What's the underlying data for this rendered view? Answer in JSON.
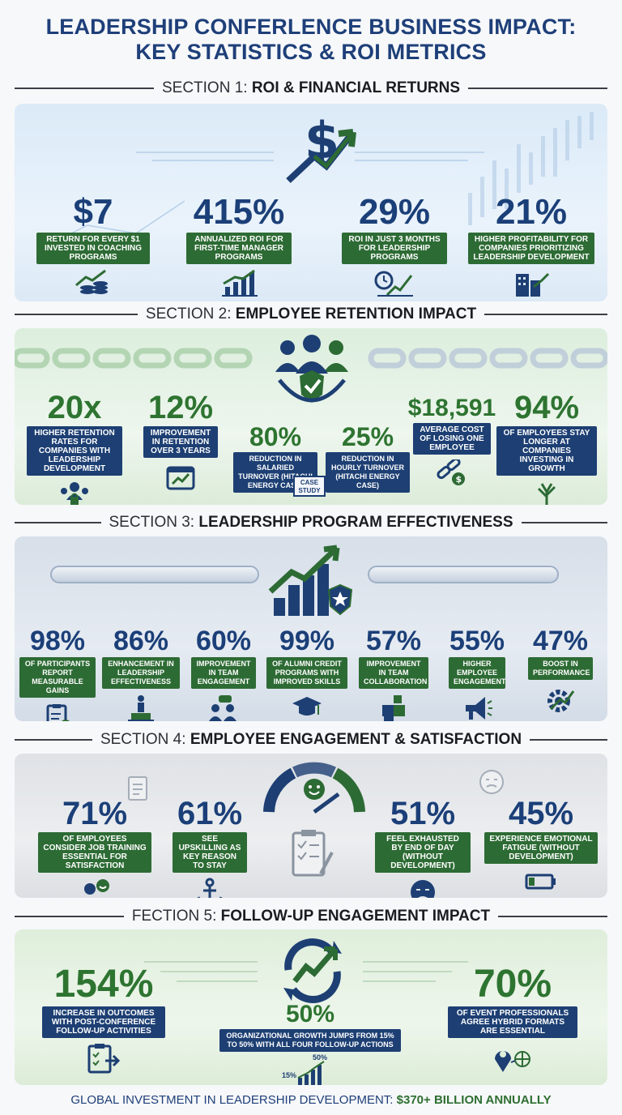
{
  "title": {
    "line1": "LEADERSHIP CONFERLENCE BUSINESS IMPACT:",
    "line2": "KEY STATISTICS & ROI METRICS"
  },
  "sections": [
    {
      "prefix": "SECTION 1:",
      "name": "ROI & FINANCIAL RETURNS"
    },
    {
      "prefix": "SECTION 2:",
      "name": "EMPLOYEE RETENTION IMPACT"
    },
    {
      "prefix": "SECTION 3:",
      "name": "LEADERSHIP PROGRAM EFFECTIVENESS"
    },
    {
      "prefix": "SECTION 4:",
      "name": "EMPLOYEE ENGAGEMENT & SATISFACTION"
    },
    {
      "prefix": "FECTION 5:",
      "name": "FOLLOW-UP ENGAGEMENT IMPACT"
    }
  ],
  "s1": [
    {
      "value": "$7",
      "label": "RETURN FOR EVERY $1 INVESTED IN COACHING PROGRAMS",
      "icon": "coins-growth-icon"
    },
    {
      "value": "415%",
      "label": "ANNUALIZED ROI FOR FIRST-TIME MANAGER PROGRAMS",
      "icon": "bar-chart-icon"
    },
    {
      "value": "29%",
      "label": "ROI IN JUST 3 MONTHS FOR LEADERSHIP PROGRAMS",
      "icon": "clock-growth-icon"
    },
    {
      "value": "21%",
      "label": "HIGHER PROFITABILITY FOR COMPANIES PRIORITIZING LEADERSHIP DEVELOPMENT",
      "icon": "building-growth-icon"
    }
  ],
  "s2": [
    {
      "value": "20x",
      "label": "HIGHER RETENTION RATES FOR COMPANIES WITH LEADERSHIP DEVELOPMENT",
      "icon": "team-lock-icon"
    },
    {
      "value": "12%",
      "label": "IMPROVEMENT IN RETENTION OVER 3 YEARS",
      "icon": "calendar-growth-icon"
    },
    {
      "value": "80%",
      "label": "REDUCTION IN SALARIED TURNOVER (HITACHI ENERGY CASE)"
    },
    {
      "value": "25%",
      "label": "REDUCTION IN HOURLY TURNOVER (HITACHI ENERGY CASE)"
    },
    {
      "value": "$18,591",
      "label": "AVERAGE COST OF LOSING ONE EMPLOYEE",
      "icon": "broken-chain-dollar-icon"
    },
    {
      "value": "94%",
      "label": "OF EMPLOYEES STAY LONGER AT COMPANIES INVESTING IN GROWTH",
      "icon": "tree-icon"
    }
  ],
  "s2_case_study": "CASE STUDY",
  "s3": [
    {
      "value": "98%",
      "label": "OF PARTICIPANTS REPORT MEASURABLE GAINS",
      "icon": "clipboard-check-icon"
    },
    {
      "value": "86%",
      "label": "ENHANCEMENT IN LEADERSHIP EFFECTIVENESS",
      "icon": "podium-leader-icon"
    },
    {
      "value": "60%",
      "label": "IMPROVEMENT IN TEAM ENGAGEMENT",
      "icon": "people-chat-icon"
    },
    {
      "value": "99%",
      "label": "OF ALUMNI CREDIT PROGRAMS WITH IMPROVED SKILLS",
      "icon": "graduation-cap-icon"
    },
    {
      "value": "57%",
      "label": "IMPROVEMENT IN TEAM COLLABORATION",
      "icon": "puzzle-icon"
    },
    {
      "value": "55%",
      "label": "HIGHER EMPLOYEE ENGAGEMENT",
      "icon": "megaphone-icon"
    },
    {
      "value": "47%",
      "label": "BOOST IN PERFORMANCE",
      "icon": "gear-growth-icon"
    }
  ],
  "s4": [
    {
      "value": "71%",
      "label": "OF EMPLOYEES CONSIDER JOB TRAINING ESSENTIAL FOR SATISFACTION",
      "icon": "person-smile-icon"
    },
    {
      "value": "61%",
      "label": "SEE UPSKILLING AS KEY REASON TO STAY",
      "icon": "anchor-icon"
    },
    {
      "value": "51%",
      "label": "FEEL EXHAUSTED BY END OF DAY (WITHOUT DEVELOPMENT)",
      "icon": "sad-face-icon"
    },
    {
      "value": "45%",
      "label": "EXPERIENCE EMOTIONAL FATIGUE (WITHOUT DEVELOPMENT)",
      "icon": "low-battery-icon"
    }
  ],
  "s5": [
    {
      "value": "154%",
      "label": "INCREASE IN OUTCOMES WITH POST-CONFERENCE FOLLOW-UP ACTIVITIES",
      "icon": "checklist-arrow-icon"
    },
    {
      "value": "50%",
      "label": "ORGANIZATIONAL GROWTH JUMPS FROM 15% TO 50% WITH ALL FOUR FOLLOW-UP ACTIONS",
      "icon": "growth-bars-icon"
    },
    {
      "value": "70%",
      "label": "OF EVENT PROFESSIONALS AGREE HYBRID FORMATS ARE ESSENTIAL",
      "icon": "location-network-icon"
    }
  ],
  "s5_mini": {
    "from": "15%",
    "to": "50%"
  },
  "footer": {
    "text": "GLOBAL INVESTMENT IN LEADERSHIP DEVELOPMENT:",
    "value": "$370+ BILLION ANNUALLY"
  },
  "colors": {
    "navy": "#1d3f73",
    "green": "#2d6b34"
  }
}
